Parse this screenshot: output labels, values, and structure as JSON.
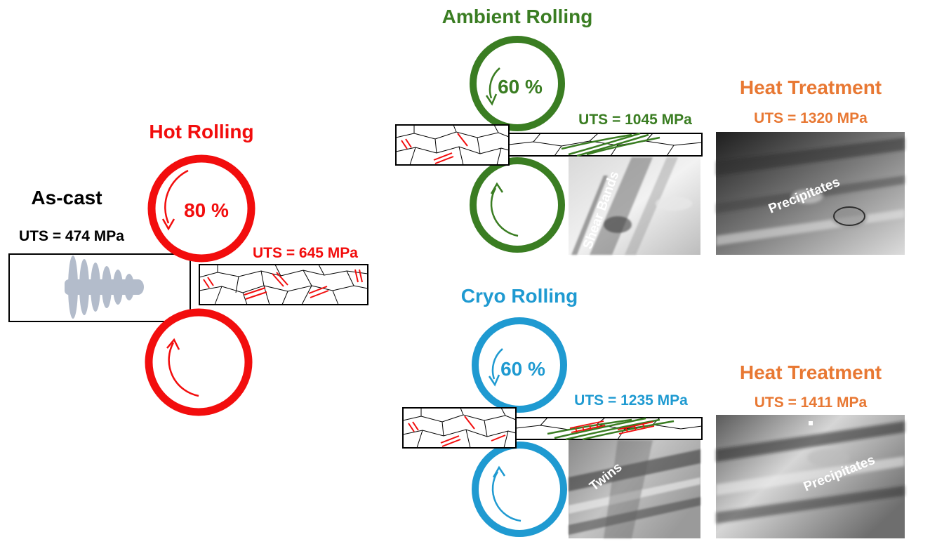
{
  "as_cast": {
    "title": "As-cast",
    "uts": "UTS = 474 MPa"
  },
  "hot_rolling": {
    "title": "Hot Rolling",
    "reduction": "80 %",
    "uts": "UTS = 645 MPa"
  },
  "ambient_rolling": {
    "title": "Ambient Rolling",
    "reduction": "60 %",
    "uts": "UTS = 1045 MPa",
    "micrograph_label": "Shear Bands"
  },
  "cryo_rolling": {
    "title": "Cryo Rolling",
    "reduction": "60 %",
    "uts": "UTS = 1235 MPa",
    "micrograph_label": "Twins"
  },
  "heat_treatment_ambient": {
    "title": "Heat Treatment",
    "uts": "UTS = 1320 MPa",
    "micrograph_label": "Precipitates"
  },
  "heat_treatment_cryo": {
    "title": "Heat Treatment",
    "uts": "UTS = 1411 MPa",
    "micrograph_label": "Precipitates"
  },
  "colors": {
    "hot": "#f20d0d",
    "ambient": "#3a7d22",
    "cryo": "#1f9ad1",
    "heat": "#e87833",
    "dark": "#000000"
  }
}
